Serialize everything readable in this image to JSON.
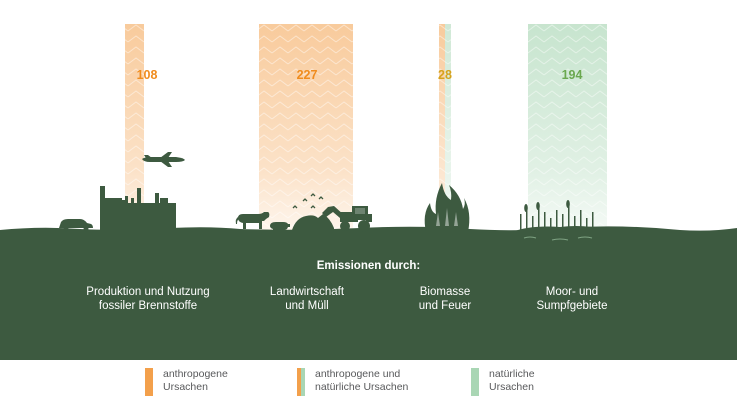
{
  "heading": "Emissionen durch:",
  "colors": {
    "ground": "#3d5a40",
    "anthropogenic": "#f3a04b",
    "natural": "#a9d6b4",
    "value_anthropogenic": "#f08c1e",
    "value_mixed": "#d6a21c",
    "value_natural": "#6aa84f"
  },
  "chart_data": {
    "type": "bar",
    "categories": [
      "Produktion und Nutzung fossiler Brennstoffe",
      "Landwirtschaft und Müll",
      "Biomasse und Feuer",
      "Moor- und Sumpfgebiete"
    ],
    "series": [
      {
        "values": [
          108,
          227,
          28,
          194
        ]
      }
    ]
  },
  "bars": [
    {
      "value_label": "108",
      "caption": "Produktion und Nutzung\nfossiler Brennstoffe",
      "kind": "anthropogenic"
    },
    {
      "value_label": "227",
      "caption": "Landwirtschaft\nund Müll",
      "kind": "anthropogenic"
    },
    {
      "value_label": "28",
      "caption": "Biomasse\nund Feuer",
      "kind": "mixed"
    },
    {
      "value_label": "194",
      "caption": "Moor- und\nSumpfgebiete",
      "kind": "natural"
    }
  ],
  "legend": [
    {
      "label": "anthropogene\nUrsachen",
      "kind": "anthropogenic"
    },
    {
      "label": "anthropogene und\nnatürliche Ursachen",
      "kind": "mixed"
    },
    {
      "label": "natürliche\nUrsachen",
      "kind": "natural"
    }
  ],
  "icons": [
    "car-icon",
    "factory-icon",
    "airplane-icon",
    "cow-icon",
    "pig-icon",
    "birds-icon",
    "tractor-icon",
    "fire-icon",
    "marsh-icon"
  ]
}
